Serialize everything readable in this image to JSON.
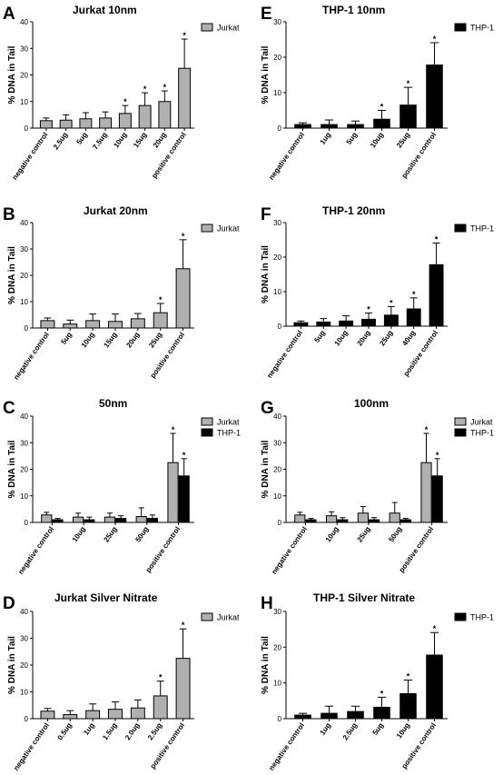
{
  "chart_data": [
    {
      "panel": "A",
      "type": "bar",
      "title": "Jurkat 10nm",
      "ylabel": "% DNA in Tail",
      "ylim": [
        0,
        40
      ],
      "yticks": [
        0,
        10,
        20,
        30,
        40
      ],
      "categories": [
        "negative control",
        "2.5ug",
        "5ug",
        "7.5ug",
        "10ug",
        "15ug",
        "20ug",
        "positive control"
      ],
      "series": [
        {
          "name": "Jurkat",
          "color": "#b0b0b0",
          "values": [
            2.8,
            3.0,
            3.5,
            3.8,
            5.5,
            8.5,
            10.0,
            22.5
          ],
          "errors": [
            1.0,
            2.0,
            2.3,
            2.3,
            3.0,
            4.8,
            4.0,
            11.0
          ],
          "significant": [
            false,
            false,
            false,
            false,
            true,
            true,
            true,
            true
          ]
        }
      ]
    },
    {
      "panel": "B",
      "type": "bar",
      "title": "Jurkat 20nm",
      "ylabel": "% DNA in Tail",
      "ylim": [
        0,
        40
      ],
      "yticks": [
        0,
        10,
        20,
        30,
        40
      ],
      "categories": [
        "negative control",
        "5ug",
        "10ug",
        "15ug",
        "20ug",
        "25ug",
        "positive control"
      ],
      "series": [
        {
          "name": "Jurkat",
          "color": "#b0b0b0",
          "values": [
            2.8,
            1.5,
            2.8,
            2.5,
            3.5,
            5.8,
            22.5
          ],
          "errors": [
            1.0,
            1.5,
            2.5,
            2.8,
            2.0,
            3.5,
            11.0
          ],
          "significant": [
            false,
            false,
            false,
            false,
            false,
            true,
            true
          ]
        }
      ]
    },
    {
      "panel": "C",
      "type": "bar",
      "title": "50nm",
      "ylabel": "% DNA in Tail",
      "ylim": [
        0,
        40
      ],
      "yticks": [
        0,
        10,
        20,
        30,
        40
      ],
      "categories": [
        "negative control",
        "10ug",
        "25ug",
        "50ug",
        "positive control"
      ],
      "series": [
        {
          "name": "Jurkat",
          "color": "#b0b0b0",
          "values": [
            2.8,
            2.0,
            2.0,
            2.2,
            22.5
          ],
          "errors": [
            1.0,
            1.5,
            1.5,
            3.3,
            11.0
          ],
          "significant": [
            false,
            false,
            false,
            false,
            true
          ]
        },
        {
          "name": "THP-1",
          "color": "#000000",
          "values": [
            1.0,
            1.0,
            1.5,
            1.5,
            17.5
          ],
          "errors": [
            0.5,
            1.0,
            1.0,
            1.3,
            6.5
          ],
          "significant": [
            false,
            false,
            false,
            false,
            true
          ]
        }
      ]
    },
    {
      "panel": "D",
      "type": "bar",
      "title": "Jurkat Silver Nitrate",
      "ylabel": "% DNA in Tail",
      "ylim": [
        0,
        40
      ],
      "yticks": [
        0,
        10,
        20,
        30,
        40
      ],
      "categories": [
        "negative control",
        "0.5ug",
        "1ug",
        "1.5ug",
        "2.0ug",
        "2.5ug",
        "positive control"
      ],
      "series": [
        {
          "name": "Jurkat",
          "color": "#b0b0b0",
          "values": [
            2.8,
            1.5,
            3.0,
            3.5,
            4.0,
            8.5,
            22.5
          ],
          "errors": [
            1.0,
            1.5,
            2.5,
            2.8,
            3.0,
            5.5,
            11.0
          ],
          "significant": [
            false,
            false,
            false,
            false,
            false,
            true,
            true
          ]
        }
      ]
    },
    {
      "panel": "E",
      "type": "bar",
      "title": "THP-1 10nm",
      "ylabel": "% DNA in Tail",
      "ylim": [
        0,
        30
      ],
      "yticks": [
        0,
        10,
        20,
        30
      ],
      "categories": [
        "negative control",
        "1ug",
        "5ug",
        "10ug",
        "25ug",
        "positive control"
      ],
      "series": [
        {
          "name": "THP-1",
          "color": "#000000",
          "values": [
            1.0,
            1.0,
            1.0,
            2.5,
            6.5,
            17.8
          ],
          "errors": [
            0.5,
            1.3,
            1.0,
            2.5,
            5.0,
            6.3
          ],
          "significant": [
            false,
            false,
            false,
            true,
            true,
            true
          ]
        }
      ]
    },
    {
      "panel": "F",
      "type": "bar",
      "title": "THP-1 20nm",
      "ylabel": "% DNA in Tail",
      "ylim": [
        0,
        30
      ],
      "yticks": [
        0,
        10,
        20,
        30
      ],
      "categories": [
        "negative control",
        "5ug",
        "10ug",
        "20ug",
        "25ug",
        "40ug",
        "positive control"
      ],
      "series": [
        {
          "name": "THP-1",
          "color": "#000000",
          "values": [
            1.0,
            1.2,
            1.5,
            2.0,
            3.2,
            5.0,
            17.8
          ],
          "errors": [
            0.5,
            1.0,
            1.5,
            1.8,
            2.5,
            3.2,
            6.3
          ],
          "significant": [
            false,
            false,
            false,
            true,
            true,
            true,
            true
          ]
        }
      ]
    },
    {
      "panel": "G",
      "type": "bar",
      "title": "100nm",
      "ylabel": "% DNA in Tail",
      "ylim": [
        0,
        40
      ],
      "yticks": [
        0,
        10,
        20,
        30,
        40
      ],
      "categories": [
        "negative control",
        "10ug",
        "25ug",
        "50ug",
        "positive control"
      ],
      "series": [
        {
          "name": "Jurkat",
          "color": "#b0b0b0",
          "values": [
            2.8,
            2.5,
            3.5,
            3.5,
            22.5
          ],
          "errors": [
            1.0,
            1.5,
            2.5,
            4.0,
            11.0
          ],
          "significant": [
            false,
            false,
            false,
            false,
            true
          ]
        },
        {
          "name": "THP-1",
          "color": "#000000",
          "values": [
            1.0,
            1.0,
            1.0,
            1.0,
            17.5
          ],
          "errors": [
            0.5,
            0.8,
            0.8,
            0.5,
            6.5
          ],
          "significant": [
            false,
            false,
            false,
            false,
            true
          ]
        }
      ]
    },
    {
      "panel": "H",
      "type": "bar",
      "title": "THP-1 Silver Nitrate",
      "ylabel": "% DNA in Tail",
      "ylim": [
        0,
        30
      ],
      "yticks": [
        0,
        10,
        20,
        30
      ],
      "categories": [
        "negative control",
        "1ug",
        "2.5ug",
        "5ug",
        "10ug",
        "positive control"
      ],
      "series": [
        {
          "name": "THP-1",
          "color": "#000000",
          "values": [
            1.0,
            1.5,
            2.0,
            3.2,
            7.0,
            17.8
          ],
          "errors": [
            0.5,
            2.0,
            1.5,
            2.8,
            3.8,
            6.3
          ],
          "significant": [
            false,
            false,
            false,
            true,
            true,
            true
          ]
        }
      ]
    }
  ]
}
